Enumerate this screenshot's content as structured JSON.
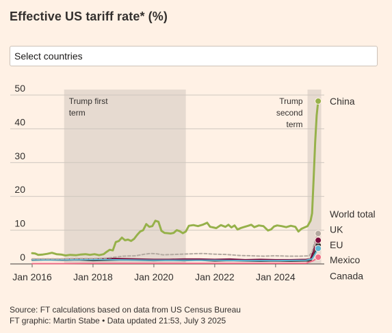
{
  "header": {
    "title": "Effective US tariff rate* (%)"
  },
  "controls": {
    "select_label": "Select countries"
  },
  "footer": {
    "source": "Source: FT calculations based on data from US Census Bureau",
    "credit": "FT graphic: Martin Stabe • Data updated 21:53, July 3 2025"
  },
  "chart_data": {
    "type": "line",
    "title": "Effective US tariff rate* (%)",
    "xlabel": "",
    "ylabel": "",
    "xlim": [
      2016.0,
      2025.6
    ],
    "ylim": [
      0,
      50
    ],
    "grid": true,
    "yticks": [
      0,
      10,
      20,
      30,
      40,
      50
    ],
    "xticks": [
      {
        "value": 2016.0,
        "label": "Jan 2016"
      },
      {
        "value": 2018.0,
        "label": "Jan 2018"
      },
      {
        "value": 2020.0,
        "label": "Jan 2020"
      },
      {
        "value": 2022.0,
        "label": "Jan 2022"
      },
      {
        "value": 2024.0,
        "label": "Jan 2024"
      }
    ],
    "shaded_periods": [
      {
        "label_lines": [
          "Trump first",
          "term"
        ],
        "start": 2017.05,
        "end": 2021.05,
        "label_align": "left"
      },
      {
        "label_lines": [
          "Trump",
          "second",
          "term"
        ],
        "start": 2025.05,
        "end": 2025.5,
        "label_align": "right"
      }
    ],
    "series": [
      {
        "name": "China",
        "color": "#96B14A",
        "width": 3,
        "dash": "",
        "end_marker": true,
        "points": [
          [
            2016.0,
            3.2
          ],
          [
            2016.1,
            3.1
          ],
          [
            2016.2,
            2.7
          ],
          [
            2016.35,
            2.8
          ],
          [
            2016.5,
            3.0
          ],
          [
            2016.65,
            3.3
          ],
          [
            2016.8,
            2.9
          ],
          [
            2016.95,
            2.8
          ],
          [
            2017.1,
            2.5
          ],
          [
            2017.25,
            2.7
          ],
          [
            2017.45,
            2.6
          ],
          [
            2017.6,
            2.8
          ],
          [
            2017.75,
            2.9
          ],
          [
            2017.9,
            2.7
          ],
          [
            2018.05,
            2.9
          ],
          [
            2018.2,
            2.6
          ],
          [
            2018.35,
            2.9
          ],
          [
            2018.45,
            3.6
          ],
          [
            2018.55,
            4.2
          ],
          [
            2018.65,
            4.0
          ],
          [
            2018.75,
            6.5
          ],
          [
            2018.85,
            6.8
          ],
          [
            2018.95,
            7.8
          ],
          [
            2019.05,
            7.0
          ],
          [
            2019.15,
            7.2
          ],
          [
            2019.25,
            6.8
          ],
          [
            2019.35,
            7.4
          ],
          [
            2019.45,
            8.6
          ],
          [
            2019.55,
            9.6
          ],
          [
            2019.65,
            10.0
          ],
          [
            2019.75,
            11.8
          ],
          [
            2019.85,
            11.0
          ],
          [
            2019.95,
            11.2
          ],
          [
            2020.05,
            12.8
          ],
          [
            2020.15,
            12.5
          ],
          [
            2020.25,
            9.8
          ],
          [
            2020.35,
            9.2
          ],
          [
            2020.45,
            9.1
          ],
          [
            2020.55,
            9.0
          ],
          [
            2020.65,
            9.2
          ],
          [
            2020.75,
            10.0
          ],
          [
            2020.85,
            9.7
          ],
          [
            2020.95,
            9.1
          ],
          [
            2021.05,
            9.6
          ],
          [
            2021.15,
            11.3
          ],
          [
            2021.3,
            11.5
          ],
          [
            2021.45,
            11.2
          ],
          [
            2021.6,
            11.6
          ],
          [
            2021.75,
            12.2
          ],
          [
            2021.85,
            11.0
          ],
          [
            2021.95,
            10.8
          ],
          [
            2022.05,
            10.6
          ],
          [
            2022.2,
            11.5
          ],
          [
            2022.35,
            11.0
          ],
          [
            2022.45,
            11.6
          ],
          [
            2022.55,
            10.8
          ],
          [
            2022.65,
            11.4
          ],
          [
            2022.75,
            10.2
          ],
          [
            2022.85,
            10.6
          ],
          [
            2022.95,
            10.9
          ],
          [
            2023.1,
            11.3
          ],
          [
            2023.2,
            11.6
          ],
          [
            2023.3,
            10.9
          ],
          [
            2023.45,
            11.4
          ],
          [
            2023.6,
            11.2
          ],
          [
            2023.75,
            9.9
          ],
          [
            2023.85,
            10.2
          ],
          [
            2023.95,
            11.1
          ],
          [
            2024.05,
            11.4
          ],
          [
            2024.2,
            11.2
          ],
          [
            2024.35,
            10.9
          ],
          [
            2024.5,
            11.3
          ],
          [
            2024.65,
            11.0
          ],
          [
            2024.75,
            9.6
          ],
          [
            2024.85,
            10.4
          ],
          [
            2024.95,
            10.8
          ],
          [
            2025.05,
            11.2
          ],
          [
            2025.15,
            12.8
          ],
          [
            2025.2,
            15.0
          ],
          [
            2025.25,
            25.0
          ],
          [
            2025.3,
            36.0
          ],
          [
            2025.35,
            44.0
          ],
          [
            2025.4,
            48.2
          ]
        ]
      },
      {
        "name": "World total",
        "color": "#B3A9A0",
        "width": 2,
        "dash": "4,3",
        "end_marker": true,
        "points": [
          [
            2016.0,
            1.5
          ],
          [
            2016.5,
            1.5
          ],
          [
            2017.0,
            1.5
          ],
          [
            2017.5,
            1.6
          ],
          [
            2018.0,
            1.6
          ],
          [
            2018.4,
            1.7
          ],
          [
            2018.7,
            2.0
          ],
          [
            2019.0,
            2.3
          ],
          [
            2019.4,
            2.4
          ],
          [
            2019.7,
            2.9
          ],
          [
            2019.9,
            3.1
          ],
          [
            2020.1,
            3.0
          ],
          [
            2020.3,
            2.7
          ],
          [
            2020.6,
            2.8
          ],
          [
            2020.9,
            2.9
          ],
          [
            2021.2,
            3.0
          ],
          [
            2021.6,
            3.1
          ],
          [
            2022.0,
            2.9
          ],
          [
            2022.4,
            2.8
          ],
          [
            2022.8,
            2.5
          ],
          [
            2023.2,
            2.4
          ],
          [
            2023.6,
            2.3
          ],
          [
            2024.0,
            2.4
          ],
          [
            2024.4,
            2.3
          ],
          [
            2024.8,
            2.3
          ],
          [
            2025.1,
            2.4
          ],
          [
            2025.2,
            3.5
          ],
          [
            2025.3,
            7.0
          ],
          [
            2025.4,
            9.0
          ]
        ]
      },
      {
        "name": "UK",
        "color": "#5DB6D3",
        "width": 2,
        "dash": "",
        "end_marker": true,
        "points": [
          [
            2016.0,
            1.2
          ],
          [
            2017.0,
            1.2
          ],
          [
            2018.0,
            1.3
          ],
          [
            2019.0,
            1.2
          ],
          [
            2020.0,
            1.1
          ],
          [
            2021.0,
            1.1
          ],
          [
            2022.0,
            1.1
          ],
          [
            2023.0,
            1.0
          ],
          [
            2024.0,
            1.0
          ],
          [
            2025.0,
            1.1
          ],
          [
            2025.2,
            1.5
          ],
          [
            2025.3,
            3.0
          ],
          [
            2025.4,
            4.6
          ]
        ]
      },
      {
        "name": "EU",
        "color": "#7A0A3B",
        "width": 2.5,
        "dash": "",
        "end_marker": true,
        "points": [
          [
            2016.0,
            1.3
          ],
          [
            2016.5,
            1.3
          ],
          [
            2017.0,
            1.3
          ],
          [
            2017.5,
            1.4
          ],
          [
            2018.0,
            1.4
          ],
          [
            2018.5,
            1.6
          ],
          [
            2019.0,
            1.5
          ],
          [
            2019.5,
            1.4
          ],
          [
            2020.0,
            1.3
          ],
          [
            2020.5,
            1.3
          ],
          [
            2021.0,
            1.4
          ],
          [
            2021.5,
            1.4
          ],
          [
            2022.0,
            1.3
          ],
          [
            2022.5,
            1.4
          ],
          [
            2023.0,
            1.2
          ],
          [
            2023.5,
            1.3
          ],
          [
            2024.0,
            1.2
          ],
          [
            2024.5,
            1.2
          ],
          [
            2025.0,
            1.3
          ],
          [
            2025.15,
            1.4
          ],
          [
            2025.25,
            3.8
          ],
          [
            2025.32,
            6.0
          ],
          [
            2025.4,
            7.0
          ]
        ]
      },
      {
        "name": "Mexico",
        "color": "#F06E88",
        "width": 2,
        "dash": "",
        "end_marker": true,
        "points": [
          [
            2016.0,
            0.1
          ],
          [
            2017.0,
            0.1
          ],
          [
            2018.0,
            0.2
          ],
          [
            2019.0,
            0.2
          ],
          [
            2020.0,
            0.2
          ],
          [
            2021.0,
            0.2
          ],
          [
            2022.0,
            0.2
          ],
          [
            2023.0,
            0.2
          ],
          [
            2024.0,
            0.2
          ],
          [
            2025.0,
            0.2
          ],
          [
            2025.25,
            1.0
          ],
          [
            2025.4,
            2.0
          ]
        ]
      },
      {
        "name": "Canada",
        "color": "#33302E",
        "width": 2,
        "dash": "",
        "end_marker": true,
        "points": [
          [
            2016.0,
            1.1
          ],
          [
            2016.5,
            1.2
          ],
          [
            2017.0,
            1.1
          ],
          [
            2017.5,
            1.2
          ],
          [
            2018.0,
            1.0
          ],
          [
            2018.5,
            1.1
          ],
          [
            2019.0,
            1.2
          ],
          [
            2019.5,
            1.1
          ],
          [
            2020.0,
            1.0
          ],
          [
            2020.5,
            1.1
          ],
          [
            2021.0,
            1.0
          ],
          [
            2021.5,
            1.1
          ],
          [
            2022.0,
            0.9
          ],
          [
            2022.5,
            1.0
          ],
          [
            2023.0,
            0.9
          ],
          [
            2023.5,
            0.8
          ],
          [
            2024.0,
            0.9
          ],
          [
            2024.5,
            0.8
          ],
          [
            2025.0,
            0.9
          ],
          [
            2025.15,
            0.9
          ],
          [
            2025.25,
            2.5
          ],
          [
            2025.32,
            4.0
          ],
          [
            2025.4,
            5.5
          ]
        ]
      }
    ],
    "legend_labels": [
      {
        "name": "China",
        "y": 48.2
      },
      {
        "name": "World total",
        "y": 14.8
      },
      {
        "name": "UK",
        "y": 10.2
      },
      {
        "name": "EU",
        "y": 5.7
      },
      {
        "name": "Mexico",
        "y": 1.2
      },
      {
        "name": "Canada",
        "y": -3.5
      }
    ]
  }
}
